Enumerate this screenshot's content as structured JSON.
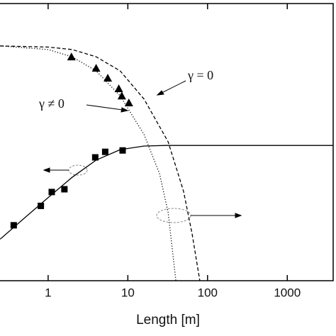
{
  "chart_data": {
    "type": "line",
    "xlabel": "Length [m]",
    "xscale": "log",
    "xlim": [
      0.249,
      3765
    ],
    "xticks": [
      1,
      10,
      100,
      1000
    ],
    "ylim": [
      0,
      1
    ],
    "y2lim": [
      0,
      1
    ],
    "series": [
      {
        "color": "#000",
        "line": "solid",
        "x": [
          0.25,
          0.5,
          1,
          2,
          4,
          8,
          16,
          30,
          3765
        ],
        "values": [
          0.15,
          0.225,
          0.3,
          0.373,
          0.435,
          0.473,
          0.486,
          0.488,
          0.488
        ]
      },
      {
        "color": "#000",
        "marker": "square",
        "x": [
          0.37,
          0.81,
          1.11,
          1.6,
          3.9,
          5.2,
          8.6
        ],
        "values": [
          0.2,
          0.27,
          0.32,
          0.33,
          0.445,
          0.465,
          0.47
        ]
      },
      {
        "color": "#000",
        "line": "dotted",
        "axis": "y2",
        "x": [
          0.25,
          1,
          2,
          4,
          8,
          16,
          25,
          32,
          40
        ],
        "values": [
          0.847,
          0.834,
          0.808,
          0.757,
          0.667,
          0.527,
          0.386,
          0.246,
          0
        ]
      },
      {
        "color": "#000",
        "line": "dashed",
        "axis": "y2",
        "x": [
          0.25,
          1,
          2,
          4,
          8,
          16,
          32,
          50,
          64,
          80
        ],
        "values": [
          0.847,
          0.843,
          0.834,
          0.808,
          0.757,
          0.655,
          0.501,
          0.322,
          0.169,
          0
        ]
      },
      {
        "color": "#000",
        "marker": "triangle",
        "axis": "y2",
        "x": [
          1.96,
          4.0,
          5.6,
          7.7,
          8.4,
          10.3
        ],
        "values": [
          0.808,
          0.767,
          0.731,
          0.693,
          0.667,
          0.642
        ]
      }
    ],
    "annotations": [
      "γ = 0",
      "γ ≠ 0"
    ]
  }
}
